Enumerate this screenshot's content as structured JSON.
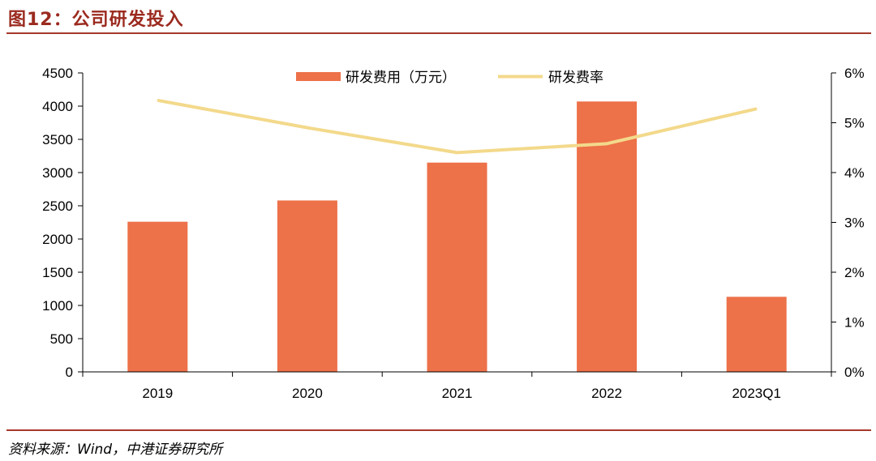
{
  "header": {
    "title": "图12：公司研发投入"
  },
  "footer": {
    "source": "资料来源：Wind，中港证券研究所"
  },
  "chart_data": {
    "type": "bar",
    "categories": [
      "2019",
      "2020",
      "2021",
      "2022",
      "2023Q1"
    ],
    "series": [
      {
        "name": "研发费用（万元）",
        "type": "bar",
        "axis": "left",
        "values": [
          2260,
          2580,
          3150,
          4070,
          1130
        ],
        "color": "#ed7149"
      },
      {
        "name": "研发费率",
        "type": "line",
        "axis": "right",
        "values": [
          5.45,
          4.9,
          4.4,
          4.58,
          5.28
        ],
        "color": "#f3d98b"
      }
    ],
    "left_axis": {
      "min": 0,
      "max": 4500,
      "ticks": [
        "0",
        "500",
        "1000",
        "1500",
        "2000",
        "2500",
        "3000",
        "3500",
        "4000",
        "4500"
      ]
    },
    "right_axis": {
      "min": 0,
      "max": 6,
      "ticks": [
        "0%",
        "1%",
        "2%",
        "3%",
        "4%",
        "5%",
        "6%"
      ]
    },
    "legend_position": "top-center",
    "grid": false
  }
}
